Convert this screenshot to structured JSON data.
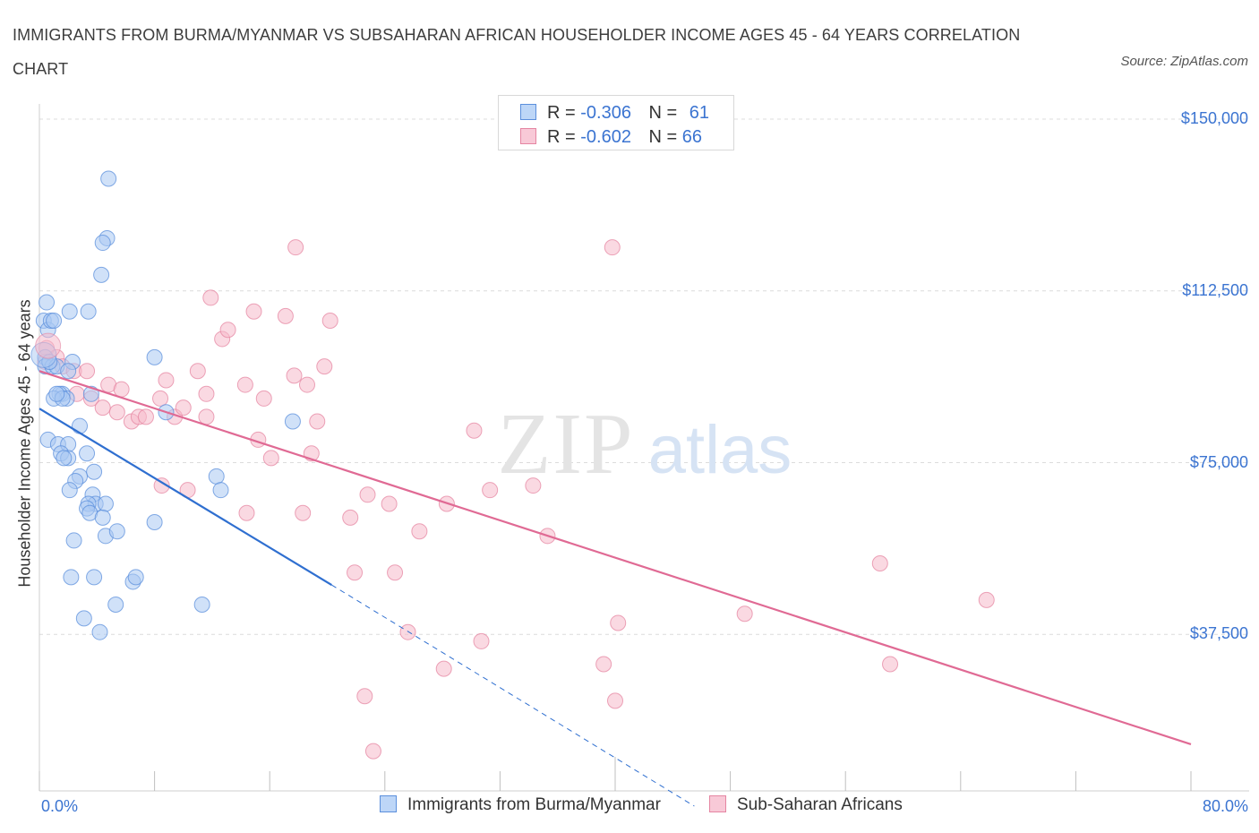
{
  "header": {
    "title": "IMMIGRANTS FROM BURMA/MYANMAR VS SUBSAHARAN AFRICAN HOUSEHOLDER INCOME AGES 45 - 64 YEARS CORRELATION CHART",
    "source": "Source: ZipAtlas.com"
  },
  "legend_top": {
    "rows": [
      {
        "r_label": "R =",
        "r_value": "-0.306",
        "n_label": "N =",
        "n_value": "61"
      },
      {
        "r_label": "R =",
        "r_value": "-0.602",
        "n_label": "N =",
        "n_value": "66"
      }
    ]
  },
  "legend_bottom": {
    "items": [
      "Immigrants from Burma/Myanmar",
      "Sub-Saharan Africans"
    ]
  },
  "axes": {
    "x_min_label": "0.0%",
    "x_max_label": "80.0%",
    "y_title": "Householder Income Ages 45 - 64 years",
    "y_ticks": [
      "$150,000",
      "$112,500",
      "$75,000",
      "$37,500"
    ]
  },
  "watermark": {
    "zip": "ZIP",
    "atlas": "atlas"
  },
  "colors": {
    "blue_fill": "#a9c8f2",
    "blue_stroke": "#5b8fdc",
    "blue_line": "#2f6fd0",
    "pink_fill": "#f5b9ca",
    "pink_stroke": "#e585a2",
    "pink_line": "#e06a94",
    "grid": "#dcdcdc",
    "axis_text": "#3b74d1"
  },
  "chart_data": {
    "type": "scatter",
    "title": "IMMIGRANTS FROM BURMA/MYANMAR VS SUBSAHARAN AFRICAN HOUSEHOLDER INCOME AGES 45 - 64 YEARS CORRELATION CHART",
    "xlabel": "",
    "ylabel": "Householder Income Ages 45 - 64 years",
    "xlim": [
      0,
      80
    ],
    "ylim": [
      0,
      150000
    ],
    "y_ticks": [
      37500,
      75000,
      112500,
      150000
    ],
    "grid": true,
    "legend_position": "bottom",
    "series": [
      {
        "name": "Immigrants from Burma/Myanmar",
        "r": -0.306,
        "n": 61,
        "trend": {
          "x": [
            0,
            20.3
          ],
          "y": [
            86800,
            48300
          ],
          "dashed_extension_to": [
            45.5,
            0
          ]
        },
        "points": [
          [
            0.3,
            106000
          ],
          [
            0.5,
            110000
          ],
          [
            0.4,
            98000
          ],
          [
            0.6,
            104000
          ],
          [
            0.8,
            106000
          ],
          [
            1.0,
            106000
          ],
          [
            0.4,
            96000
          ],
          [
            0.9,
            96000
          ],
          [
            1.2,
            96000
          ],
          [
            1.6,
            90000
          ],
          [
            1.4,
            90000
          ],
          [
            1.9,
            89000
          ],
          [
            2.3,
            97000
          ],
          [
            3.6,
            90000
          ],
          [
            1.0,
            89000
          ],
          [
            1.6,
            89000
          ],
          [
            3.4,
            108000
          ],
          [
            2.1,
            108000
          ],
          [
            4.7,
            124000
          ],
          [
            4.4,
            123000
          ],
          [
            4.3,
            116000
          ],
          [
            4.8,
            137000
          ],
          [
            0.6,
            80000
          ],
          [
            1.3,
            79000
          ],
          [
            2.0,
            79000
          ],
          [
            1.5,
            77000
          ],
          [
            2.0,
            76000
          ],
          [
            1.7,
            76000
          ],
          [
            3.3,
            77000
          ],
          [
            2.8,
            83000
          ],
          [
            3.8,
            73000
          ],
          [
            2.8,
            72000
          ],
          [
            2.5,
            71000
          ],
          [
            2.1,
            69000
          ],
          [
            3.7,
            68000
          ],
          [
            3.9,
            66000
          ],
          [
            3.4,
            66000
          ],
          [
            3.3,
            65000
          ],
          [
            4.6,
            66000
          ],
          [
            3.5,
            64000
          ],
          [
            4.4,
            63000
          ],
          [
            4.6,
            59000
          ],
          [
            5.4,
            60000
          ],
          [
            2.4,
            58000
          ],
          [
            2.2,
            50000
          ],
          [
            3.8,
            50000
          ],
          [
            6.5,
            49000
          ],
          [
            6.7,
            50000
          ],
          [
            3.1,
            41000
          ],
          [
            4.2,
            38000
          ],
          [
            5.3,
            44000
          ],
          [
            11.3,
            44000
          ],
          [
            8.0,
            98000
          ],
          [
            8.8,
            86000
          ],
          [
            8.0,
            62000
          ],
          [
            12.3,
            72000
          ],
          [
            12.6,
            69000
          ],
          [
            17.6,
            84000
          ],
          [
            0.7,
            97000
          ],
          [
            1.2,
            90000
          ],
          [
            2.0,
            95000
          ]
        ]
      },
      {
        "name": "Sub-Saharan Africans",
        "r": -0.602,
        "n": 66,
        "trend": {
          "x": [
            0,
            80
          ],
          "y": [
            95000,
            13500
          ]
        },
        "points": [
          [
            0.5,
            100000
          ],
          [
            1.2,
            98000
          ],
          [
            1.6,
            96000
          ],
          [
            2.4,
            95000
          ],
          [
            3.3,
            95000
          ],
          [
            4.8,
            92000
          ],
          [
            5.7,
            91000
          ],
          [
            2.6,
            90000
          ],
          [
            3.6,
            89000
          ],
          [
            5.4,
            86000
          ],
          [
            6.4,
            84000
          ],
          [
            6.9,
            85000
          ],
          [
            4.4,
            87000
          ],
          [
            7.4,
            85000
          ],
          [
            9.4,
            85000
          ],
          [
            8.4,
            89000
          ],
          [
            10.0,
            87000
          ],
          [
            11.6,
            85000
          ],
          [
            11.0,
            95000
          ],
          [
            11.6,
            90000
          ],
          [
            8.8,
            93000
          ],
          [
            14.3,
            92000
          ],
          [
            15.6,
            89000
          ],
          [
            17.7,
            94000
          ],
          [
            18.6,
            92000
          ],
          [
            19.8,
            96000
          ],
          [
            11.9,
            111000
          ],
          [
            12.7,
            102000
          ],
          [
            13.1,
            104000
          ],
          [
            14.9,
            108000
          ],
          [
            17.1,
            107000
          ],
          [
            17.8,
            122000
          ],
          [
            20.2,
            106000
          ],
          [
            16.1,
            76000
          ],
          [
            15.2,
            80000
          ],
          [
            18.9,
            77000
          ],
          [
            19.3,
            84000
          ],
          [
            8.5,
            70000
          ],
          [
            10.3,
            69000
          ],
          [
            14.4,
            64000
          ],
          [
            18.3,
            64000
          ],
          [
            21.6,
            63000
          ],
          [
            22.8,
            68000
          ],
          [
            24.3,
            66000
          ],
          [
            26.4,
            60000
          ],
          [
            28.3,
            66000
          ],
          [
            30.2,
            82000
          ],
          [
            31.3,
            69000
          ],
          [
            34.3,
            70000
          ],
          [
            35.3,
            59000
          ],
          [
            21.9,
            51000
          ],
          [
            24.7,
            51000
          ],
          [
            25.6,
            38000
          ],
          [
            28.1,
            30000
          ],
          [
            30.7,
            36000
          ],
          [
            22.6,
            24000
          ],
          [
            23.2,
            12000
          ],
          [
            40.2,
            40000
          ],
          [
            39.2,
            31000
          ],
          [
            40.0,
            23000
          ],
          [
            39.8,
            122000
          ],
          [
            49.0,
            42000
          ],
          [
            58.4,
            53000
          ],
          [
            59.1,
            31000
          ],
          [
            65.8,
            45000
          ],
          [
            0.4,
            97000
          ]
        ]
      }
    ]
  }
}
